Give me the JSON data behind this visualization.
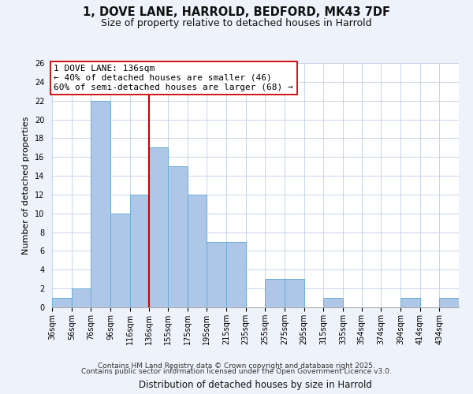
{
  "title": "1, DOVE LANE, HARROLD, BEDFORD, MK43 7DF",
  "subtitle": "Size of property relative to detached houses in Harrold",
  "xlabel": "Distribution of detached houses by size in Harrold",
  "ylabel": "Number of detached properties",
  "bin_labels": [
    "36sqm",
    "56sqm",
    "76sqm",
    "96sqm",
    "116sqm",
    "136sqm",
    "155sqm",
    "175sqm",
    "195sqm",
    "215sqm",
    "235sqm",
    "255sqm",
    "275sqm",
    "295sqm",
    "315sqm",
    "335sqm",
    "354sqm",
    "374sqm",
    "394sqm",
    "414sqm",
    "434sqm"
  ],
  "bin_edges": [
    36,
    56,
    76,
    96,
    116,
    136,
    155,
    175,
    195,
    215,
    235,
    255,
    275,
    295,
    315,
    335,
    354,
    374,
    394,
    414,
    434
  ],
  "bar_heights": [
    1,
    2,
    22,
    10,
    12,
    17,
    15,
    12,
    7,
    7,
    0,
    3,
    3,
    0,
    1,
    0,
    0,
    0,
    1,
    0,
    1
  ],
  "bar_color": "#aec6e8",
  "bar_edge_color": "#6aafd6",
  "property_line_x": 136,
  "property_line_color": "#cc0000",
  "annotation_text": "1 DOVE LANE: 136sqm\n← 40% of detached houses are smaller (46)\n60% of semi-detached houses are larger (68) →",
  "annotation_box_color": "#ffffff",
  "annotation_box_edge": "#cc0000",
  "ylim": [
    0,
    26
  ],
  "yticks": [
    0,
    2,
    4,
    6,
    8,
    10,
    12,
    14,
    16,
    18,
    20,
    22,
    24,
    26
  ],
  "background_color": "#eef2fa",
  "plot_bg_color": "#ffffff",
  "grid_color": "#c8d4ea",
  "footer_line1": "Contains HM Land Registry data © Crown copyright and database right 2025.",
  "footer_line2": "Contains public sector information licensed under the Open Government Licence v3.0.",
  "title_fontsize": 10.5,
  "subtitle_fontsize": 9,
  "xlabel_fontsize": 8.5,
  "ylabel_fontsize": 8,
  "annotation_fontsize": 8,
  "footer_fontsize": 6.5,
  "tick_fontsize": 7
}
